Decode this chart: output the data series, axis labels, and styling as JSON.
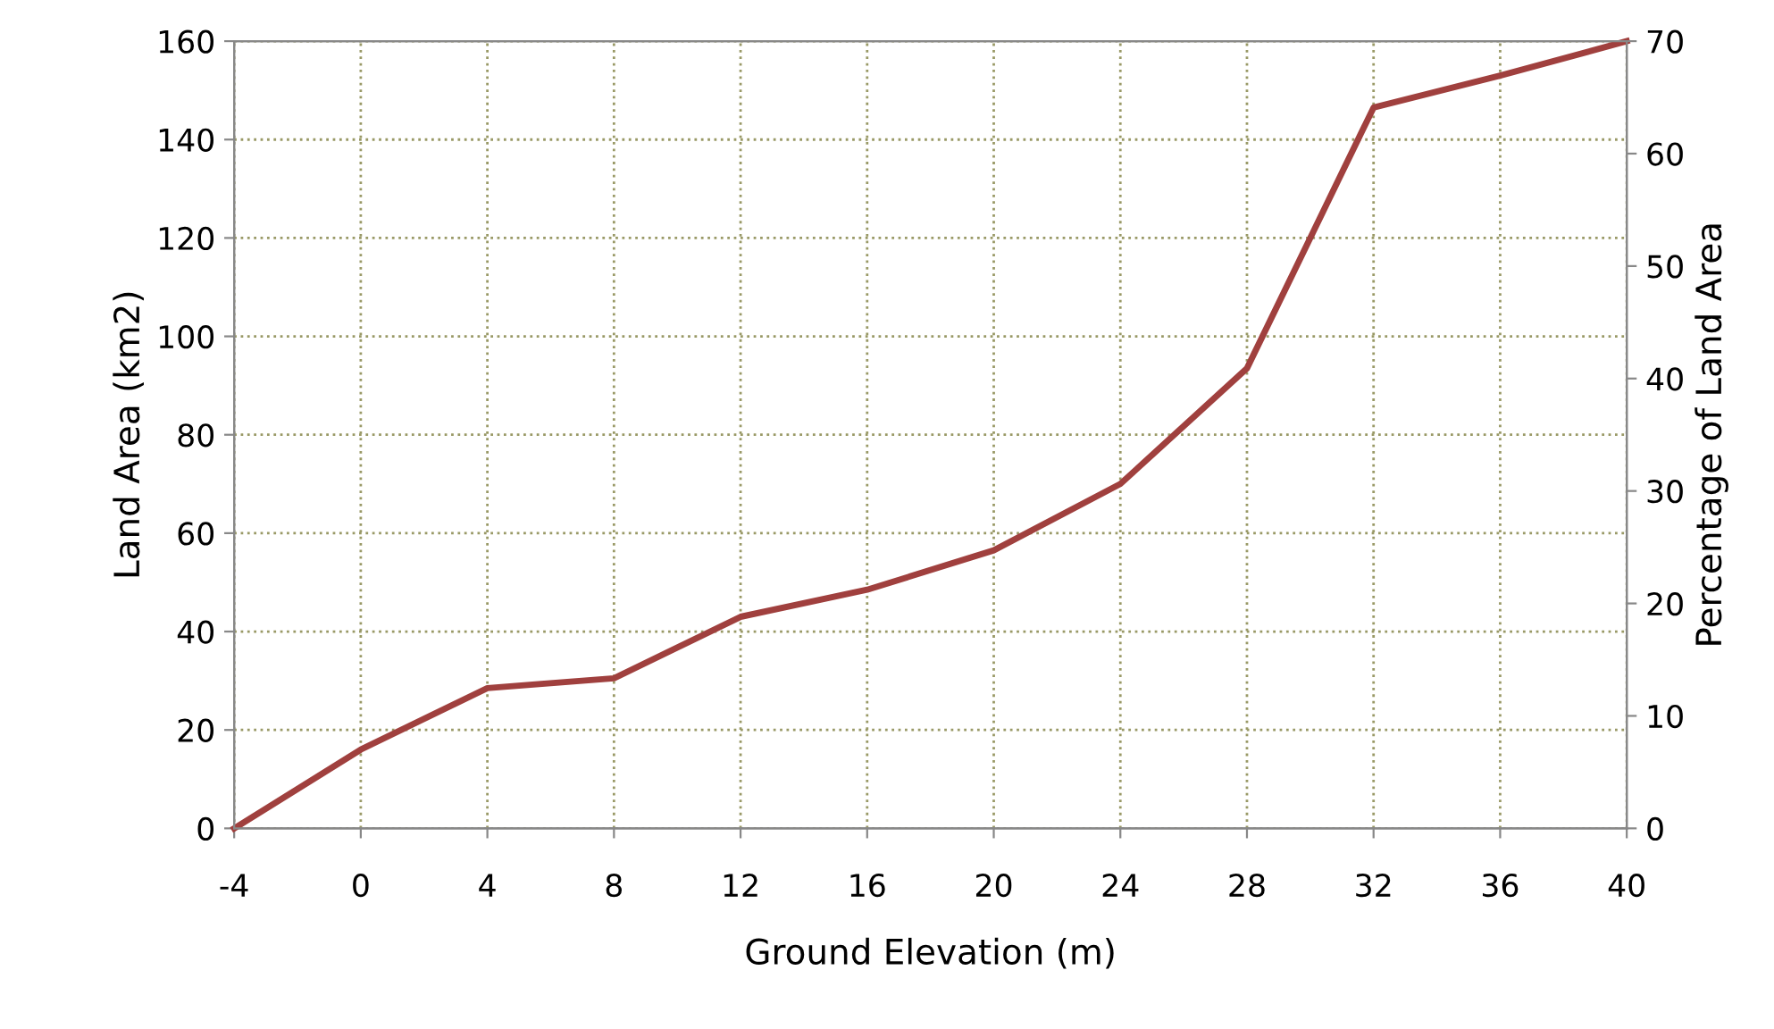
{
  "chart_data": {
    "type": "line",
    "xlabel": "Ground Elevation (m)",
    "ylabel": "Land Area (km2)",
    "y2label": "Percentage of Land Area",
    "x": [
      -4,
      0,
      4,
      8,
      12,
      16,
      20,
      24,
      28,
      32,
      36,
      40
    ],
    "series": [
      {
        "color": "#a0403e",
        "values": [
          0,
          16,
          28.5,
          30.5,
          43,
          48.5,
          56.5,
          70,
          93.5,
          146.5,
          153,
          160
        ]
      }
    ],
    "xlim": [
      -4,
      40
    ],
    "xticks": [
      -4,
      0,
      4,
      8,
      12,
      16,
      20,
      24,
      28,
      32,
      36,
      40
    ],
    "ylim": [
      0,
      160
    ],
    "yticks": [
      0,
      20,
      40,
      60,
      80,
      100,
      120,
      140,
      160
    ],
    "y2lim": [
      0,
      70
    ],
    "y2ticks": [
      0,
      10,
      20,
      30,
      40,
      50,
      60,
      70
    ],
    "grid": true,
    "line_style": "solid",
    "marker": "none"
  }
}
